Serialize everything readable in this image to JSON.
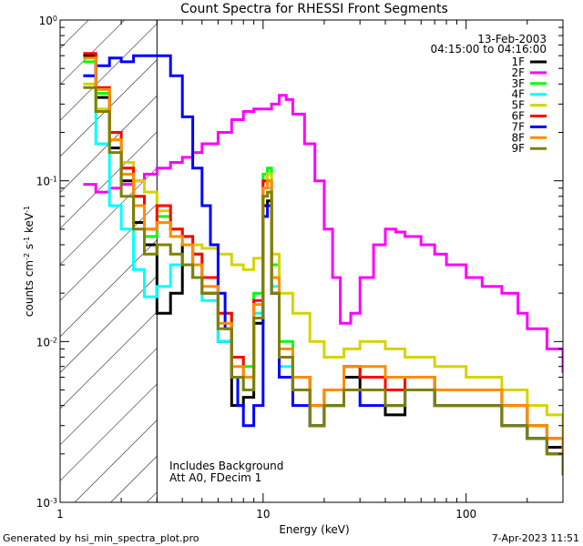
{
  "chart_data": {
    "type": "line",
    "title": "Count Spectra for RHESSI Front Segments",
    "xlabel": "Energy (keV)",
    "ylabel": "counts cm^-2 s^-1 keV^-1",
    "x_scale": "log",
    "y_scale": "log",
    "xlim": [
      1,
      300
    ],
    "ylim": [
      0.001,
      1
    ],
    "x_ticks": [
      {
        "value": 1,
        "label": "1"
      },
      {
        "value": 10,
        "label": "10"
      },
      {
        "value": 100,
        "label": "100"
      }
    ],
    "y_ticks": [
      {
        "value": 0.001,
        "base": "10",
        "exp": "-3"
      },
      {
        "value": 0.01,
        "base": "10",
        "exp": "-2"
      },
      {
        "value": 0.1,
        "base": "10",
        "exp": "-1"
      },
      {
        "value": 1,
        "base": "10",
        "exp": "0"
      }
    ],
    "date": "13-Feb-2003",
    "time_range": "04:15:00 to 04:16:00",
    "shaded_region_max_keV": 3,
    "annotation_lines": [
      "Includes Background",
      "Att A0, FDecim 1"
    ],
    "footer_left": "Generated by hsi_min_spectra_plot.pro",
    "footer_right": "7-Apr-2023 11:51",
    "series": [
      {
        "name": "1F",
        "color": "#000000",
        "x": [
          1.3,
          1.5,
          1.75,
          2.0,
          2.3,
          2.6,
          3.0,
          3.5,
          4.0,
          4.5,
          5.0,
          6.0,
          7.0,
          8.0,
          9.0,
          10.0,
          10.5,
          11.0,
          12.0,
          14.0,
          17.0,
          20.0,
          25.0,
          30.0,
          40.0,
          50.0,
          70.0,
          100.0,
          150.0,
          200.0,
          250.0,
          300.0
        ],
        "values": [
          0.6,
          0.33,
          0.16,
          0.1,
          0.055,
          0.04,
          0.015,
          0.02,
          0.04,
          0.025,
          0.02,
          0.01,
          0.004,
          0.0045,
          0.013,
          0.07,
          0.075,
          0.02,
          0.006,
          0.005,
          0.003,
          0.004,
          0.006,
          0.005,
          0.0035,
          0.005,
          0.004,
          0.004,
          0.003,
          0.0025,
          0.0022,
          0.0015
        ]
      },
      {
        "name": "2F",
        "color": "#ff00ff",
        "x": [
          1.3,
          1.5,
          1.75,
          2.0,
          2.3,
          2.6,
          3.0,
          3.5,
          4.0,
          4.5,
          5.0,
          6.0,
          7.0,
          8.0,
          9.0,
          10.0,
          11.0,
          12.0,
          13.0,
          14.0,
          16.0,
          18.0,
          20.0,
          22.0,
          24.0,
          27.0,
          30.0,
          35.0,
          40.0,
          45.0,
          50.0,
          60.0,
          70.0,
          80.0,
          100.0,
          120.0,
          150.0,
          180.0,
          200.0,
          250.0,
          300.0
        ],
        "values": [
          0.095,
          0.085,
          0.09,
          0.095,
          0.1,
          0.11,
          0.12,
          0.13,
          0.14,
          0.15,
          0.17,
          0.2,
          0.24,
          0.27,
          0.28,
          0.28,
          0.3,
          0.34,
          0.32,
          0.26,
          0.17,
          0.1,
          0.05,
          0.025,
          0.013,
          0.015,
          0.025,
          0.04,
          0.05,
          0.048,
          0.045,
          0.04,
          0.035,
          0.03,
          0.025,
          0.022,
          0.02,
          0.015,
          0.012,
          0.009,
          0.0065
        ]
      },
      {
        "name": "3F",
        "color": "#00ff00",
        "x": [
          1.3,
          1.5,
          1.75,
          2.0,
          2.3,
          2.6,
          3.0,
          3.5,
          4.0,
          4.5,
          5.0,
          6.0,
          7.0,
          8.0,
          9.0,
          10.0,
          10.5,
          11.0,
          12.0,
          14.0,
          17.0,
          20.0,
          25.0,
          30.0,
          40.0,
          50.0,
          70.0,
          100.0,
          150.0,
          200.0,
          250.0,
          300.0
        ],
        "values": [
          0.55,
          0.35,
          0.2,
          0.12,
          0.08,
          0.045,
          0.06,
          0.05,
          0.045,
          0.035,
          0.025,
          0.015,
          0.008,
          0.007,
          0.02,
          0.11,
          0.12,
          0.03,
          0.01,
          0.006,
          0.004,
          0.005,
          0.007,
          0.006,
          0.005,
          0.006,
          0.005,
          0.005,
          0.004,
          0.003,
          0.0025,
          0.002
        ]
      },
      {
        "name": "4F",
        "color": "#00ffff",
        "x": [
          1.3,
          1.5,
          1.75,
          2.0,
          2.3,
          2.6,
          3.0,
          3.5,
          4.0,
          4.5,
          5.0,
          6.0,
          7.0,
          8.0,
          9.0,
          10.0,
          10.5,
          11.0,
          12.0,
          14.0,
          17.0,
          20.0,
          25.0,
          30.0,
          40.0,
          50.0,
          70.0,
          100.0,
          150.0,
          200.0,
          250.0,
          300.0
        ],
        "values": [
          0.45,
          0.17,
          0.07,
          0.05,
          0.028,
          0.019,
          0.022,
          0.03,
          0.03,
          0.025,
          0.018,
          0.01,
          0.006,
          0.005,
          0.015,
          0.09,
          0.09,
          0.022,
          0.007,
          0.005,
          0.003,
          0.004,
          0.005,
          0.005,
          0.004,
          0.005,
          0.004,
          0.004,
          0.003,
          0.0025,
          0.002,
          0.0015
        ]
      },
      {
        "name": "5F",
        "color": "#d4d400",
        "x": [
          1.3,
          1.5,
          1.75,
          2.0,
          2.3,
          2.6,
          3.0,
          3.5,
          4.0,
          4.5,
          5.0,
          6.0,
          7.0,
          8.0,
          9.0,
          10.0,
          10.5,
          11.0,
          12.0,
          14.0,
          17.0,
          20.0,
          25.0,
          30.0,
          40.0,
          50.0,
          70.0,
          100.0,
          150.0,
          200.0,
          250.0,
          300.0
        ],
        "values": [
          0.4,
          0.28,
          0.18,
          0.13,
          0.1,
          0.085,
          0.065,
          0.05,
          0.045,
          0.04,
          0.038,
          0.035,
          0.03,
          0.028,
          0.033,
          0.1,
          0.11,
          0.035,
          0.02,
          0.015,
          0.01,
          0.008,
          0.009,
          0.01,
          0.009,
          0.008,
          0.007,
          0.006,
          0.005,
          0.004,
          0.0035,
          0.0025
        ]
      },
      {
        "name": "6F",
        "color": "#ff0000",
        "x": [
          1.3,
          1.5,
          1.75,
          2.0,
          2.3,
          2.6,
          3.0,
          3.5,
          4.0,
          4.5,
          5.0,
          6.0,
          7.0,
          8.0,
          9.0,
          10.0,
          10.5,
          11.0,
          12.0,
          14.0,
          17.0,
          20.0,
          25.0,
          30.0,
          40.0,
          50.0,
          70.0,
          100.0,
          150.0,
          200.0,
          250.0,
          300.0
        ],
        "values": [
          0.62,
          0.38,
          0.2,
          0.12,
          0.08,
          0.05,
          0.07,
          0.05,
          0.045,
          0.035,
          0.025,
          0.015,
          0.008,
          0.006,
          0.018,
          0.1,
          0.1,
          0.025,
          0.008,
          0.006,
          0.004,
          0.005,
          0.007,
          0.006,
          0.005,
          0.006,
          0.005,
          0.005,
          0.004,
          0.003,
          0.0025,
          0.002
        ]
      },
      {
        "name": "7F",
        "color": "#0000ff",
        "x": [
          1.3,
          1.5,
          1.75,
          2.0,
          2.3,
          2.6,
          3.0,
          3.5,
          4.0,
          4.5,
          5.0,
          5.5,
          6.0,
          6.5,
          7.0,
          7.5,
          8.0,
          9.0,
          10.0,
          10.5,
          11.0,
          12.0,
          14.0,
          17.0,
          20.0,
          25.0,
          30.0,
          40.0,
          50.0,
          70.0,
          100.0,
          150.0,
          200.0,
          250.0,
          300.0
        ],
        "values": [
          0.45,
          0.52,
          0.58,
          0.55,
          0.6,
          0.6,
          0.6,
          0.45,
          0.25,
          0.12,
          0.07,
          0.04,
          0.02,
          0.012,
          0.006,
          0.004,
          0.003,
          0.004,
          0.06,
          0.07,
          0.02,
          0.006,
          0.004,
          0.003,
          0.004,
          0.005,
          0.004,
          0.004,
          0.005,
          0.004,
          0.004,
          0.003,
          0.0025,
          0.002,
          0.0015
        ]
      },
      {
        "name": "8F",
        "color": "#ff8c00",
        "x": [
          1.3,
          1.5,
          1.75,
          2.0,
          2.3,
          2.6,
          3.0,
          3.5,
          4.0,
          4.5,
          5.0,
          6.0,
          7.0,
          8.0,
          9.0,
          10.0,
          10.5,
          11.0,
          12.0,
          14.0,
          17.0,
          20.0,
          25.0,
          30.0,
          40.0,
          50.0,
          70.0,
          100.0,
          150.0,
          200.0,
          250.0,
          300.0
        ],
        "values": [
          0.58,
          0.37,
          0.18,
          0.11,
          0.07,
          0.05,
          0.055,
          0.045,
          0.04,
          0.03,
          0.022,
          0.013,
          0.007,
          0.006,
          0.017,
          0.09,
          0.1,
          0.025,
          0.009,
          0.006,
          0.004,
          0.005,
          0.007,
          0.007,
          0.006,
          0.006,
          0.005,
          0.005,
          0.004,
          0.003,
          0.0025,
          0.002
        ]
      },
      {
        "name": "9F",
        "color": "#808000",
        "x": [
          1.3,
          1.5,
          1.75,
          2.0,
          2.3,
          2.6,
          3.0,
          3.5,
          4.0,
          4.5,
          5.0,
          6.0,
          7.0,
          8.0,
          9.0,
          10.0,
          10.5,
          11.0,
          12.0,
          14.0,
          17.0,
          20.0,
          25.0,
          30.0,
          40.0,
          50.0,
          70.0,
          100.0,
          150.0,
          200.0,
          250.0,
          300.0
        ],
        "values": [
          0.38,
          0.27,
          0.15,
          0.08,
          0.05,
          0.035,
          0.04,
          0.035,
          0.03,
          0.025,
          0.02,
          0.012,
          0.006,
          0.005,
          0.014,
          0.08,
          0.085,
          0.02,
          0.008,
          0.005,
          0.003,
          0.004,
          0.005,
          0.005,
          0.004,
          0.005,
          0.004,
          0.004,
          0.003,
          0.0025,
          0.002,
          0.0015
        ]
      }
    ]
  }
}
